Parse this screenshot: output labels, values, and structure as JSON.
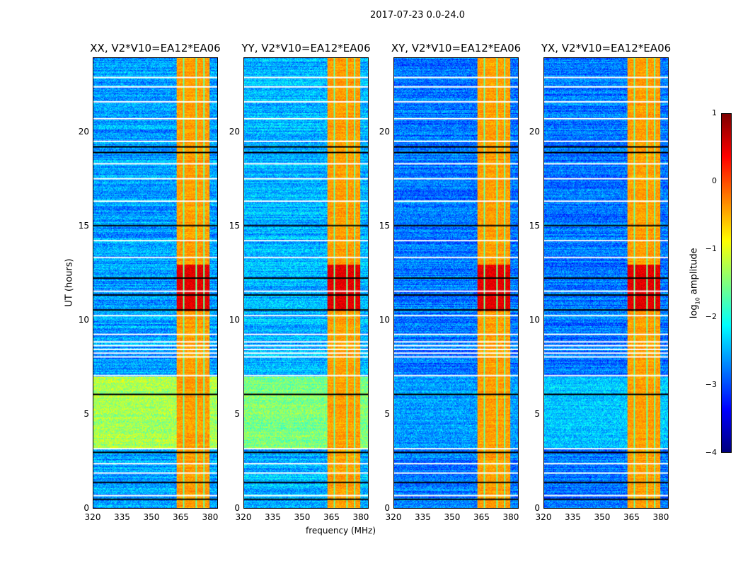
{
  "chart_data": {
    "type": "heatmap",
    "title": "2017-07-23 0.0-24.0",
    "xlabel": "frequency (MHz)",
    "ylabel": "UT (hours)",
    "xlim": [
      320,
      384
    ],
    "ylim": [
      0,
      24
    ],
    "xticks": [
      320,
      335,
      350,
      365,
      380
    ],
    "yticks": [
      0,
      5,
      10,
      15,
      20
    ],
    "colormap": "jet",
    "colorbar": {
      "label": "log10 amplitude",
      "label_main": "log",
      "label_sub": "10",
      "label_rest": " amplitude",
      "range": [
        -4,
        1
      ],
      "ticks": [
        1,
        0,
        -1,
        -2,
        -3,
        -4
      ],
      "tick_labels": [
        "1",
        "0",
        "−1",
        "−2",
        "−3",
        "−4"
      ]
    },
    "panels": [
      {
        "title": "XX, V2*V10=EA12*EA06",
        "background_level": -2.6,
        "enhanced_hours": [
          3.2,
          7.0
        ],
        "enhanced_level": -1.3
      },
      {
        "title": "YY, V2*V10=EA12*EA06",
        "background_level": -2.5,
        "enhanced_hours": [
          3.2,
          7.0
        ],
        "enhanced_level": -1.5
      },
      {
        "title": "XY, V2*V10=EA12*EA06",
        "background_level": -2.8,
        "enhanced_hours": [
          3.2,
          7.0
        ],
        "enhanced_level": -2.6
      },
      {
        "title": "YX, V2*V10=EA12*EA06",
        "background_level": -2.8,
        "enhanced_hours": [
          3.2,
          7.0
        ],
        "enhanced_level": -2.4
      }
    ],
    "rfi_band_mhz": [
      363,
      380
    ],
    "rfi_band_level": -0.4,
    "rfi_peak_hours": [
      10.5,
      13.0
    ],
    "rfi_peak_level": 0.5,
    "flagged_hours_white": [
      0.7,
      1.9,
      2.4,
      3.2,
      7.1,
      8.1,
      8.3,
      8.5,
      8.7,
      8.9,
      9.3,
      10.3,
      11.6,
      13.4,
      14.3,
      16.4,
      17.6,
      18.4,
      19.6,
      20.8,
      21.7,
      22.5,
      23.0
    ],
    "flagged_hours_black": [
      0.5,
      1.4,
      3.0,
      6.1,
      10.6,
      11.4,
      12.3,
      15.1,
      19.0,
      19.3
    ]
  }
}
